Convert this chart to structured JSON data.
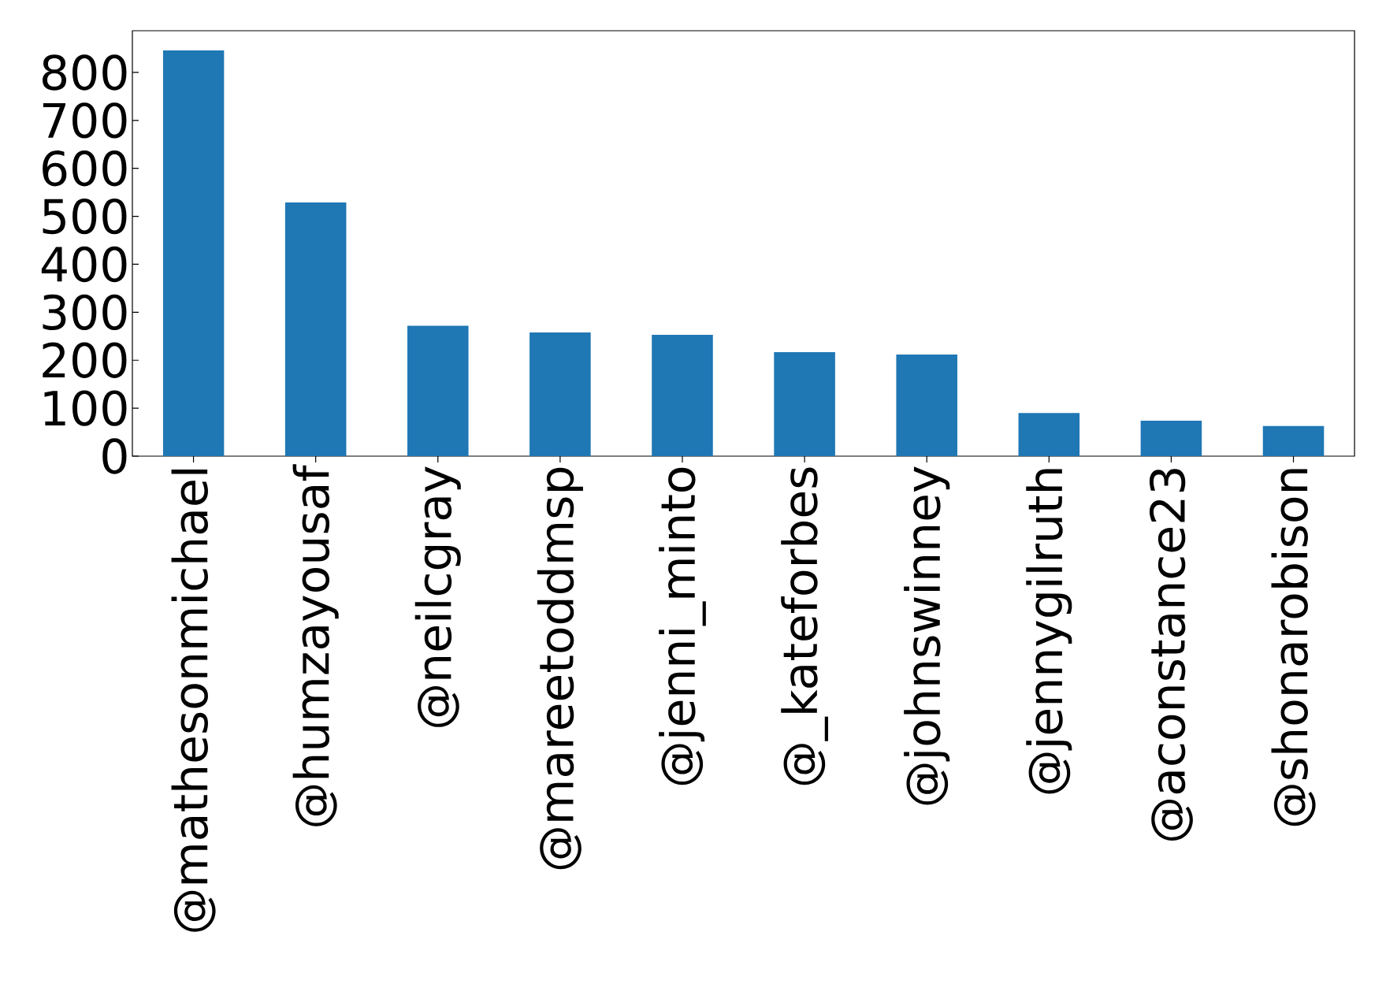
{
  "chart_data": {
    "type": "bar",
    "categories": [
      "@mathesonmichael",
      "@humzayousaf",
      "@neilcgray",
      "@mareetoddmsp",
      "@jenni_minto",
      "@_kateforbes",
      "@johnswinney",
      "@jennygilruth",
      "@aconstance23",
      "@shonarobison"
    ],
    "values": [
      846,
      529,
      272,
      258,
      253,
      217,
      212,
      90,
      74,
      63
    ],
    "color": "#1f77b4",
    "ylim": [
      0,
      887
    ],
    "yticks": [
      0,
      100,
      200,
      300,
      400,
      500,
      600,
      700,
      800
    ],
    "grid": false
  }
}
